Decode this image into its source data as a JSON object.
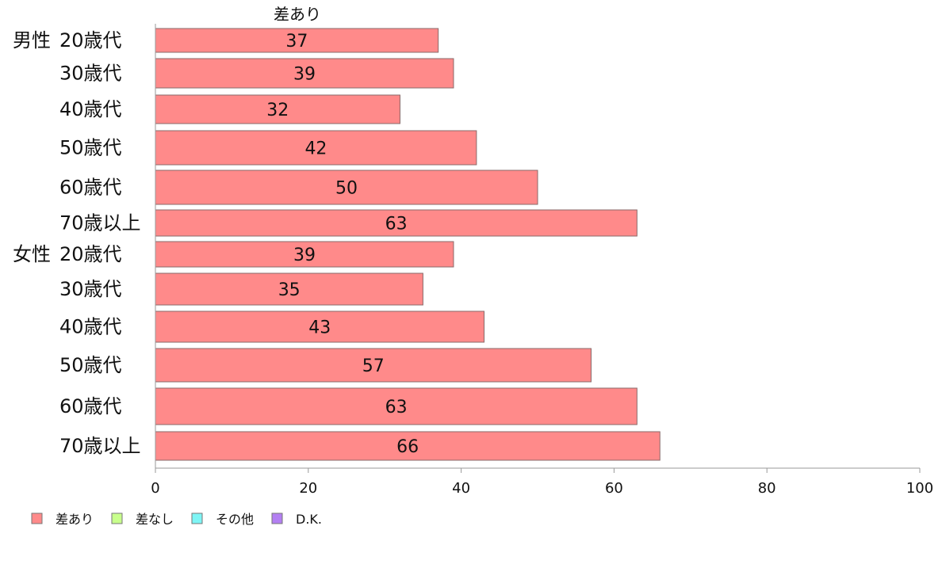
{
  "chart_data": {
    "type": "bar",
    "orientation": "horizontal",
    "series_title": "差あり",
    "groups": [
      {
        "name": "男性",
        "rows": [
          {
            "label": "20歳代",
            "value": 37
          },
          {
            "label": "30歳代",
            "value": 39
          },
          {
            "label": "40歳代",
            "value": 32
          },
          {
            "label": "50歳代",
            "value": 42
          },
          {
            "label": "60歳代",
            "value": 50
          },
          {
            "label": "70歳以上",
            "value": 63
          }
        ]
      },
      {
        "name": "女性",
        "rows": [
          {
            "label": "20歳代",
            "value": 39
          },
          {
            "label": "30歳代",
            "value": 35
          },
          {
            "label": "40歳代",
            "value": 43
          },
          {
            "label": "50歳代",
            "value": 57
          },
          {
            "label": "60歳代",
            "value": 63
          },
          {
            "label": "70歳以上",
            "value": 66
          }
        ]
      }
    ],
    "xlim": [
      0,
      100
    ],
    "xticks": [
      0,
      20,
      40,
      60,
      80,
      100
    ],
    "grid": false,
    "legend_position": "bottom-left",
    "legend": [
      {
        "label": "差あり",
        "color": "#ff8a8a"
      },
      {
        "label": "差なし",
        "color": "#c8ff8c"
      },
      {
        "label": "その他",
        "color": "#7ef5f5"
      },
      {
        "label": "D.K.",
        "color": "#b37ff2"
      }
    ],
    "bar_color": "#ff8a8a"
  }
}
